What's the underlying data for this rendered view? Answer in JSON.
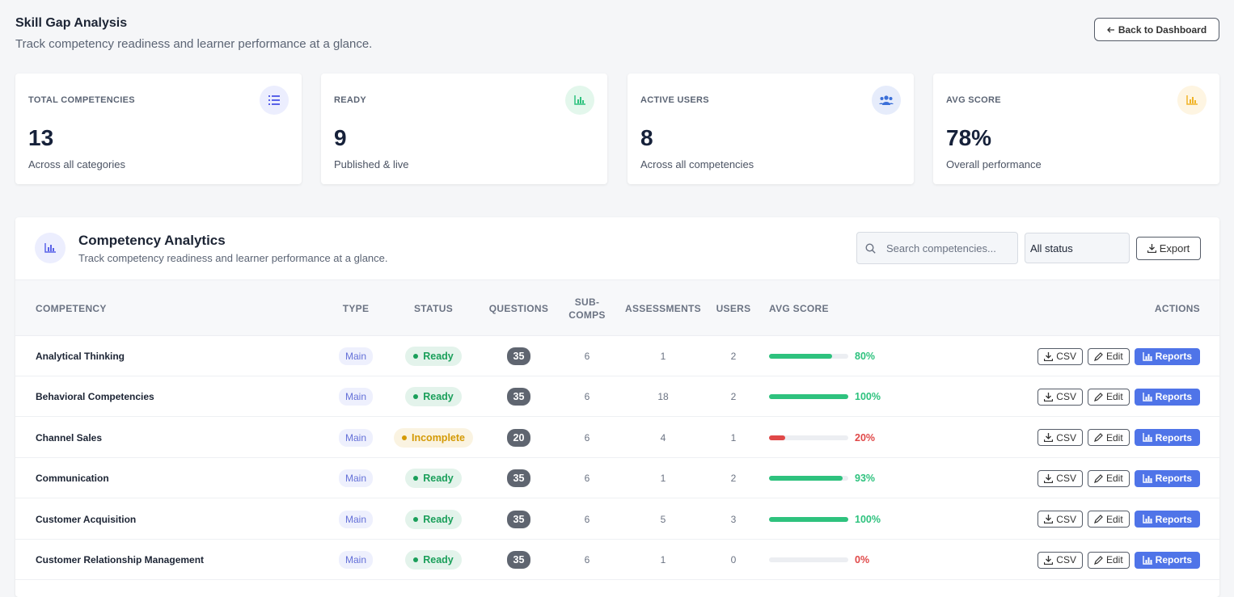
{
  "header": {
    "title": "Skill Gap Analysis",
    "subtitle": "Track competency readiness and learner performance at a glance.",
    "back_button": "Back to Dashboard"
  },
  "stats": [
    {
      "label": "TOTAL COMPETENCIES",
      "value": 13,
      "caption": "Across all categories"
    },
    {
      "label": "READY",
      "value": 9,
      "caption": "Published & live"
    },
    {
      "label": "ACTIVE USERS",
      "value": 8,
      "caption": "Across all competencies"
    },
    {
      "label": "AVG SCORE",
      "value": "78%",
      "caption": "Overall performance"
    }
  ],
  "panel": {
    "title": "Competency Analytics",
    "subtitle": "Track competency readiness and learner performance at a glance.",
    "search_placeholder": "Search competencies...",
    "filter": "All status",
    "export": "Export"
  },
  "table": {
    "columns": [
      "COMPETENCY",
      "TYPE",
      "STATUS",
      "QUESTIONS",
      "SUB-COMPS",
      "ASSESSMENTS",
      "USERS",
      "AVG SCORE",
      "ACTIONS"
    ],
    "actions": [
      "CSV",
      "Edit",
      "Reports"
    ],
    "rows": [
      {
        "name": "Analytical Thinking",
        "type": "Main",
        "status": "Ready",
        "status_color": "#1a9f5a",
        "questions": 35,
        "sub_comps": 6,
        "assessments": 1,
        "users": 2,
        "score": 80,
        "score_label": "80%",
        "color": "#2ec27e"
      },
      {
        "name": "Behavioral Competencies",
        "type": "Main",
        "status": "Ready",
        "status_color": "#1a9f5a",
        "questions": 35,
        "sub_comps": 6,
        "assessments": 18,
        "users": 2,
        "score": 100,
        "score_label": "100%",
        "color": "#2ec27e"
      },
      {
        "name": "Channel Sales",
        "type": "Main",
        "status": "Incomplete",
        "status_color": "#d49a06",
        "questions": 20,
        "sub_comps": 6,
        "assessments": 4,
        "users": 1,
        "score": 20,
        "score_label": "20%",
        "color": "#e04848"
      },
      {
        "name": "Communication",
        "type": "Main",
        "status": "Ready",
        "status_color": "#1a9f5a",
        "questions": 35,
        "sub_comps": 6,
        "assessments": 1,
        "users": 2,
        "score": 93,
        "score_label": "93%",
        "color": "#2ec27e"
      },
      {
        "name": "Customer Acquisition",
        "type": "Main",
        "status": "Ready",
        "status_color": "#1a9f5a",
        "questions": 35,
        "sub_comps": 6,
        "assessments": 5,
        "users": 3,
        "score": 100,
        "score_label": "100%",
        "color": "#2ec27e"
      },
      {
        "name": "Customer Relationship Management",
        "type": "Main",
        "status": "Ready",
        "status_color": "#1a9f5a",
        "questions": 35,
        "sub_comps": 6,
        "assessments": 1,
        "users": 0,
        "score": 0,
        "score_label": "0%",
        "color": "#e04848"
      }
    ]
  }
}
